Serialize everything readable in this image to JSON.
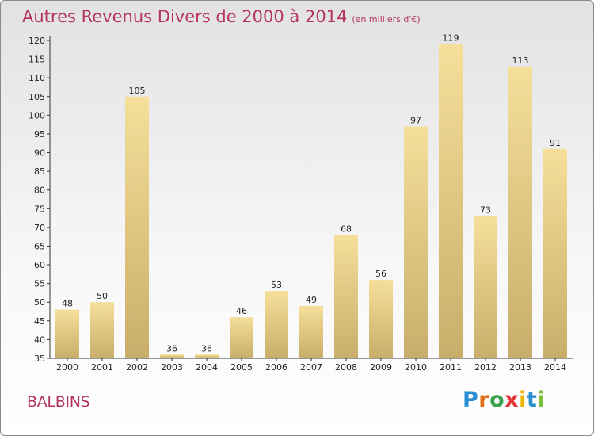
{
  "header": {
    "title": "Autres Revenus Divers de 2000 à 2014",
    "unit": "(en milliers d'€)"
  },
  "footer": {
    "commune": "BALBINS",
    "brand": "Proxiti",
    "brand_letters": [
      {
        "ch": "P",
        "color": "#2a8fd0"
      },
      {
        "ch": "r",
        "color": "#e2711d"
      },
      {
        "ch": "o",
        "color": "#3aa24a"
      },
      {
        "ch": "x",
        "color": "#e2363b"
      },
      {
        "ch": "i",
        "color": "#f0b400"
      },
      {
        "ch": "t",
        "color": "#2a8fd0"
      },
      {
        "ch": "i",
        "color": "#7cbf3a"
      }
    ]
  },
  "chart_data": {
    "type": "bar",
    "title": "Autres Revenus Divers de 2000 à 2014",
    "xlabel": "",
    "ylabel": "",
    "categories": [
      "2000",
      "2001",
      "2002",
      "2003",
      "2004",
      "2005",
      "2006",
      "2007",
      "2008",
      "2009",
      "2010",
      "2011",
      "2012",
      "2013",
      "2014"
    ],
    "values": [
      48,
      50,
      105,
      36,
      36,
      46,
      53,
      49,
      68,
      56,
      97,
      119,
      73,
      113,
      91
    ],
    "ylim": [
      35,
      120
    ],
    "yticks": [
      35,
      40,
      45,
      50,
      55,
      60,
      65,
      70,
      75,
      80,
      85,
      90,
      95,
      100,
      105,
      110,
      115,
      120
    ],
    "grid": false,
    "colors": {
      "bar_top": "#f5df9a",
      "bar_bottom": "#c8ae6a",
      "title": "#b5355e"
    }
  }
}
